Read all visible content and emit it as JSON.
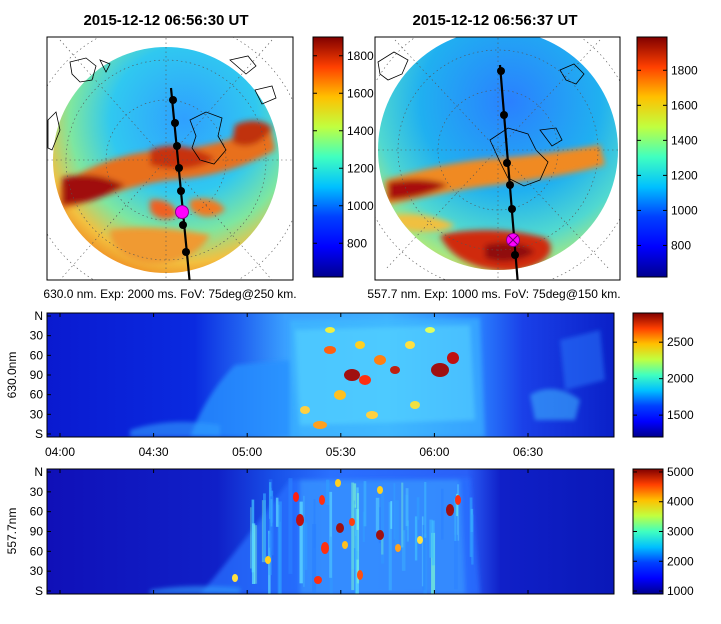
{
  "colors": {
    "jet": [
      "#00008f",
      "#0000ff",
      "#0080ff",
      "#00ffff",
      "#80ff80",
      "#ffff00",
      "#ff8000",
      "#ff0000",
      "#800000"
    ],
    "track": "#000000",
    "marker": "#ff00ff"
  },
  "chart_data": [
    {
      "type": "heatmap",
      "title": "2015-12-12 06:56:30 UT",
      "caption": "630.0 nm. Exp: 2000 ms. FoV: 75deg@250 km.",
      "colorbar": {
        "range": [
          620,
          1900
        ],
        "ticks": [
          800,
          1000,
          1200,
          1400,
          1600,
          1800
        ]
      },
      "track_points": 7,
      "marker_on_point": 5
    },
    {
      "type": "heatmap",
      "title": "2015-12-12 06:56:37 UT",
      "caption": "557.7 nm. Exp: 1000 ms. FoV: 75deg@150 km.",
      "colorbar": {
        "range": [
          620,
          1990
        ],
        "ticks": [
          800,
          1000,
          1200,
          1400,
          1600,
          1800
        ]
      },
      "track_points": 6,
      "marker_on_point": 5
    },
    {
      "type": "heatmap",
      "ylabel": "630.0nm",
      "y_ticks": [
        "N",
        "30",
        "60",
        "90",
        "60",
        "30",
        "S"
      ],
      "x_ticks": [
        "04:00",
        "04:30",
        "05:00",
        "05:30",
        "06:00",
        "06:30"
      ],
      "colorbar": {
        "range": [
          1200,
          2900
        ],
        "ticks": [
          1500,
          2000,
          2500
        ]
      }
    },
    {
      "type": "heatmap",
      "ylabel": "557.7nm",
      "y_ticks": [
        "N",
        "30",
        "60",
        "90",
        "60",
        "30",
        "S"
      ],
      "colorbar": {
        "range": [
          900,
          5100
        ],
        "ticks": [
          1000,
          2000,
          3000,
          4000,
          5000
        ]
      }
    }
  ]
}
